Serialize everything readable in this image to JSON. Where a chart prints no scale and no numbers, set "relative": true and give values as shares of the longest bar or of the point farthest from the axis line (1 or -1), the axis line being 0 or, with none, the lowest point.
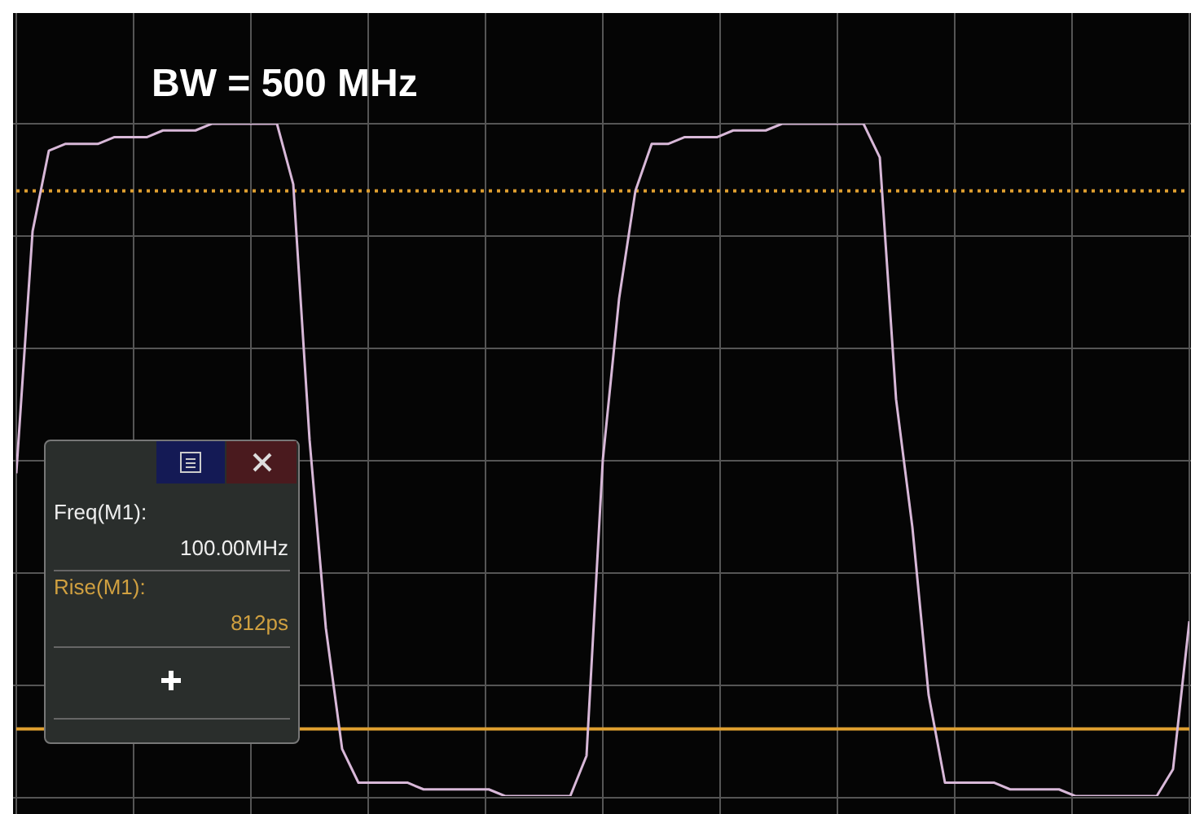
{
  "chart_data": {
    "type": "line",
    "title": "BW = 500 MHz",
    "relative": true,
    "grid": true,
    "categories": [
      null,
      null,
      null,
      null,
      null,
      null,
      null,
      null,
      null,
      null,
      null,
      null,
      null,
      null,
      null,
      null,
      null,
      null,
      null,
      null,
      null,
      null,
      null,
      null,
      null,
      null,
      null,
      null,
      null,
      null,
      null,
      null,
      null,
      null,
      null,
      null,
      null,
      null,
      null,
      null,
      null,
      null,
      null,
      null,
      null,
      null,
      null,
      null,
      null,
      null,
      null,
      null,
      null,
      null,
      null,
      null,
      null,
      null,
      null,
      null,
      null,
      null,
      null,
      null,
      null,
      null,
      null,
      null,
      null,
      null,
      null,
      null,
      null
    ],
    "series": [
      {
        "color": "#d8b8d8",
        "values": [
          0.48,
          0.84,
          0.96,
          0.97,
          0.97,
          0.97,
          0.98,
          0.98,
          0.98,
          0.99,
          0.99,
          0.99,
          1,
          1,
          1,
          1,
          1,
          0.91,
          0.53,
          0.25,
          0.07,
          0.02,
          0.02,
          0.02,
          0.02,
          0.01,
          0.01,
          0.01,
          0.01,
          0.01,
          0,
          0,
          0,
          0,
          0,
          0.06,
          0.5,
          0.74,
          0.9,
          0.97,
          0.97,
          0.98,
          0.98,
          0.98,
          0.99,
          0.99,
          0.99,
          1,
          1,
          1,
          1,
          1,
          1,
          0.95,
          0.59,
          0.4,
          0.15,
          0.02,
          0.02,
          0.02,
          0.02,
          0.01,
          0.01,
          0.01,
          0.01,
          0,
          0,
          0,
          0,
          0,
          0,
          0.04,
          0.26
        ]
      }
    ],
    "ref_lines": [
      {
        "axis": "y",
        "value": 0.9,
        "color": "#e0a030",
        "line_style": "dotted"
      },
      {
        "axis": "y",
        "value": 0.1,
        "color": "#e0a030",
        "line_style": "solid"
      }
    ],
    "annotations": [
      "Freq(M1):",
      "100.00MHz",
      "Rise(M1):",
      "812ps"
    ]
  }
}
